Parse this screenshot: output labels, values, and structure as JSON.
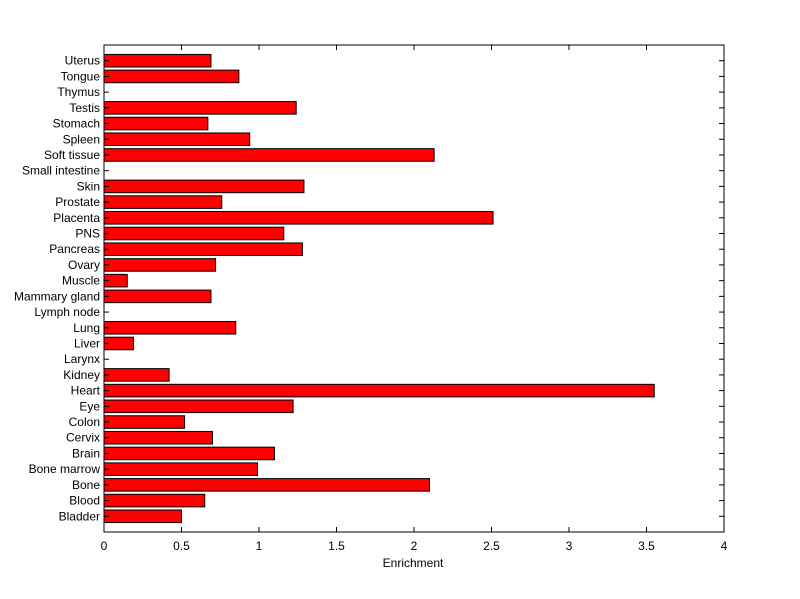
{
  "chart_data": {
    "type": "bar",
    "orientation": "horizontal",
    "title": "",
    "xlabel": "Enrichment",
    "ylabel": "",
    "xlim": [
      0,
      4
    ],
    "x_ticks": [
      "0",
      "0.5",
      "1",
      "1.5",
      "2",
      "2.5",
      "3",
      "3.5",
      "4"
    ],
    "grid": false,
    "bar_color": "#ff0000",
    "categories": [
      "Uterus",
      "Tongue",
      "Thymus",
      "Testis",
      "Stomach",
      "Spleen",
      "Soft tissue",
      "Small intestine",
      "Skin",
      "Prostate",
      "Placenta",
      "PNS",
      "Pancreas",
      "Ovary",
      "Muscle",
      "Mammary gland",
      "Lymph node",
      "Lung",
      "Liver",
      "Larynx",
      "Kidney",
      "Heart",
      "Eye",
      "Colon",
      "Cervix",
      "Brain",
      "Bone marrow",
      "Bone",
      "Blood",
      "Bladder"
    ],
    "values": [
      0.69,
      0.87,
      0,
      1.24,
      0.67,
      0.94,
      2.13,
      0,
      1.29,
      0.76,
      2.51,
      1.16,
      1.28,
      0.72,
      0.15,
      0.69,
      0,
      0.85,
      0.19,
      0,
      0.42,
      3.55,
      1.22,
      0.52,
      0.7,
      1.1,
      0.99,
      2.1,
      0.65,
      0.5
    ]
  }
}
